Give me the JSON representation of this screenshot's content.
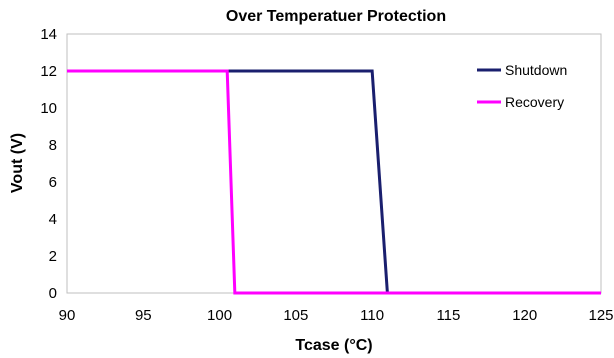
{
  "chart_data": {
    "type": "line",
    "title": "Over Temperatuer Protection",
    "xlabel": "Tcase (°C)",
    "ylabel": "Vout (V)",
    "xlim": [
      90,
      125
    ],
    "ylim": [
      0,
      14
    ],
    "xticks": [
      90,
      95,
      100,
      105,
      110,
      115,
      120,
      125
    ],
    "yticks": [
      0,
      2,
      4,
      6,
      8,
      10,
      12,
      14
    ],
    "grid": false,
    "legend_position": "top-right",
    "series": [
      {
        "name": "Shutdown",
        "color": "#1a1f6e",
        "x": [
          90,
          110,
          111,
          125
        ],
        "y": [
          12,
          12,
          0,
          0
        ]
      },
      {
        "name": "Recovery",
        "color": "#ff00ff",
        "x": [
          90,
          100.5,
          101,
          125
        ],
        "y": [
          12,
          12,
          0,
          0
        ]
      }
    ]
  }
}
